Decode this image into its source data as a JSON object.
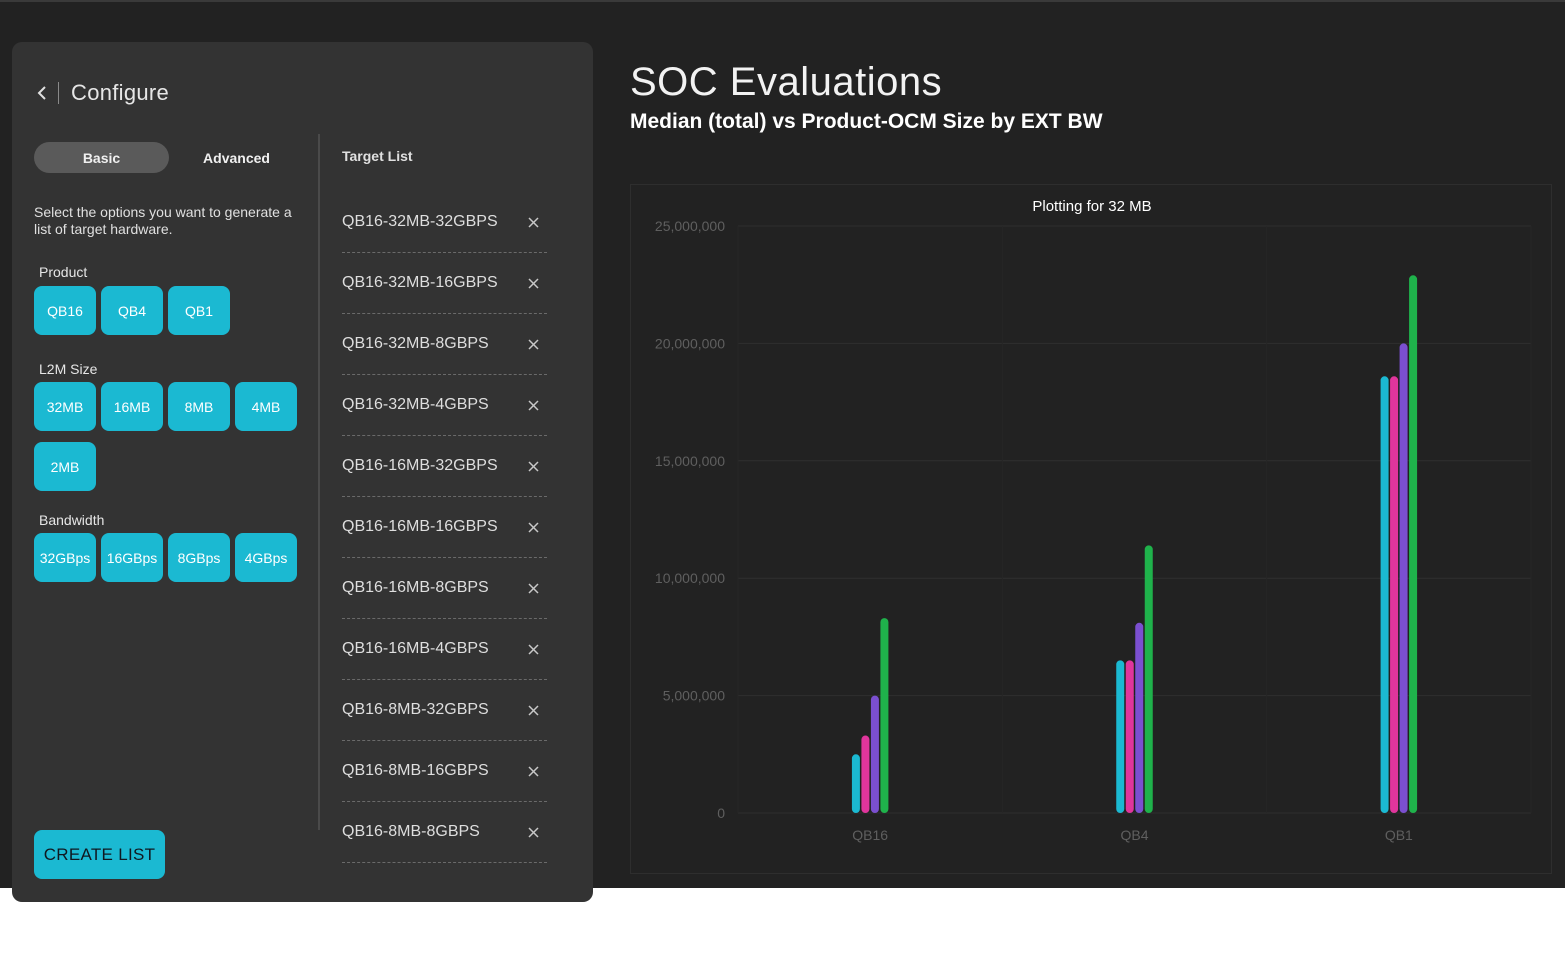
{
  "panel": {
    "title": "Configure",
    "tabs": [
      {
        "label": "Basic",
        "active": true
      },
      {
        "label": "Advanced",
        "active": false
      }
    ],
    "instructions": "Select the options you want to generate a list of target hardware.",
    "groups": {
      "product": {
        "label": "Product",
        "options": [
          "QB16",
          "QB4",
          "QB1"
        ]
      },
      "l2m": {
        "label": "L2M Size",
        "options": [
          "32MB",
          "16MB",
          "8MB",
          "4MB",
          "2MB"
        ]
      },
      "bandwidth": {
        "label": "Bandwidth",
        "options": [
          "32GBps",
          "16GBps",
          "8GBps",
          "4GBps"
        ]
      }
    },
    "create_label": "CREATE LIST",
    "target_title": "Target List",
    "targets": [
      "QB16-32MB-32GBPS",
      "QB16-32MB-16GBPS",
      "QB16-32MB-8GBPS",
      "QB16-32MB-4GBPS",
      "QB16-16MB-32GBPS",
      "QB16-16MB-16GBPS",
      "QB16-16MB-8GBPS",
      "QB16-16MB-4GBPS",
      "QB16-8MB-32GBPS",
      "QB16-8MB-16GBPS",
      "QB16-8MB-8GBPS"
    ]
  },
  "header": {
    "title": "SOC Evaluations",
    "subtitle": "Median (total) vs Product-OCM Size by EXT BW"
  },
  "colors": {
    "accent": "#1bb9d2",
    "series": [
      "#1bb9d2",
      "#e0359c",
      "#7b4fd0",
      "#1fb24b"
    ]
  },
  "chart_data": {
    "type": "bar",
    "title": "Plotting for 32 MB",
    "categories": [
      "QB16",
      "QB4",
      "QB1"
    ],
    "ylim": [
      0,
      25000000
    ],
    "yticks": [
      0,
      5000000,
      10000000,
      15000000,
      20000000,
      25000000
    ],
    "ytick_labels": [
      "0",
      "5,000,000",
      "10,000,000",
      "15,000,000",
      "20,000,000",
      "25,000,000"
    ],
    "grid": true,
    "series": [
      {
        "values": [
          2500000,
          6500000,
          18600000
        ]
      },
      {
        "values": [
          3300000,
          6500000,
          18600000
        ]
      },
      {
        "values": [
          5000000,
          8100000,
          20000000
        ]
      },
      {
        "values": [
          8300000,
          11400000,
          22900000
        ]
      }
    ]
  }
}
